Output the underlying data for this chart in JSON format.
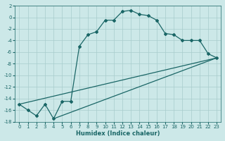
{
  "xlabel": "Humidex (Indice chaleur)",
  "xlim": [
    -0.5,
    23.5
  ],
  "ylim": [
    -18,
    2
  ],
  "xticks": [
    0,
    1,
    2,
    3,
    4,
    5,
    6,
    7,
    8,
    9,
    10,
    11,
    12,
    13,
    14,
    15,
    16,
    17,
    18,
    19,
    20,
    21,
    22,
    23
  ],
  "yticks": [
    2,
    0,
    -2,
    -4,
    -6,
    -8,
    -10,
    -12,
    -14,
    -16,
    -18
  ],
  "bg_color": "#cce8e8",
  "grid_color": "#a8cccc",
  "line_color": "#1a6666",
  "curve_x": [
    0,
    1,
    2,
    3,
    4,
    5,
    6,
    7,
    8,
    9,
    10,
    11,
    12,
    13,
    14,
    15,
    16,
    17,
    18,
    19,
    20,
    21,
    22,
    23
  ],
  "curve_y": [
    -15,
    -16,
    -17,
    -15,
    -17.5,
    -14.5,
    -14.5,
    -5,
    -3,
    -2.5,
    -0.5,
    -0.5,
    1,
    1.2,
    0.5,
    0.3,
    -0.5,
    -2.8,
    -3,
    -4,
    -4,
    -4,
    -6.3,
    -7
  ],
  "line1_x": [
    0,
    23
  ],
  "line1_y": [
    -15,
    -7
  ],
  "line2_x": [
    4,
    23
  ],
  "line2_y": [
    -17.5,
    -7
  ]
}
